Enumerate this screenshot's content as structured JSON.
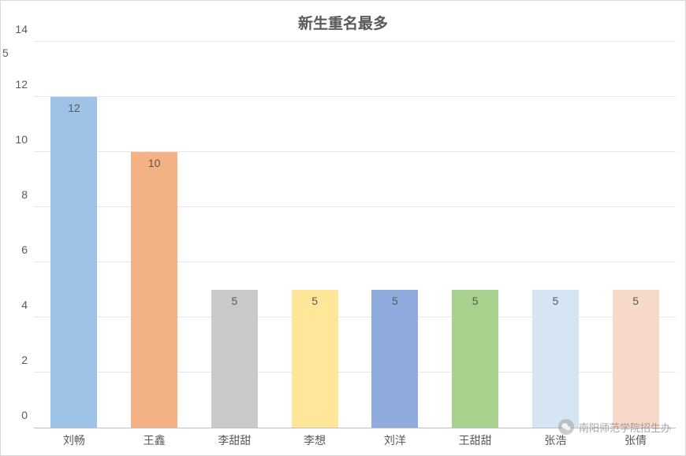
{
  "chart": {
    "type": "bar",
    "title": "新生重名最多",
    "title_fontsize": 19,
    "title_color": "#595959",
    "title_fontweight": "bold",
    "background_color": "#ffffff",
    "border_color": "#d9d9d9",
    "grid_color": "#e6e6e6",
    "axis_line_color": "#bfbfbf",
    "tick_color": "#595959",
    "tick_fontsize": 14,
    "label_fontsize": 14,
    "ylim": [
      0,
      14
    ],
    "ytick_step": 2,
    "yticks": [
      0,
      2,
      4,
      6,
      8,
      10,
      12,
      14
    ],
    "extra_left_tick": "5",
    "categories": [
      "刘畅",
      "王鑫",
      "李甜甜",
      "李想",
      "刘洋",
      "王甜甜",
      "张浩",
      "张倩"
    ],
    "values": [
      12,
      10,
      5,
      5,
      5,
      5,
      5,
      5
    ],
    "bar_colors": [
      "#9dc3e6",
      "#f4b183",
      "#c9c9c9",
      "#ffe699",
      "#8faadc",
      "#a9d18e",
      "#d6e5f4",
      "#f7d9c9"
    ],
    "bar_label_color": "#595959",
    "bar_width_ratio": 0.58
  },
  "watermark": {
    "text": "南阳师范学院招生办",
    "icon_name": "wechat-icon"
  }
}
